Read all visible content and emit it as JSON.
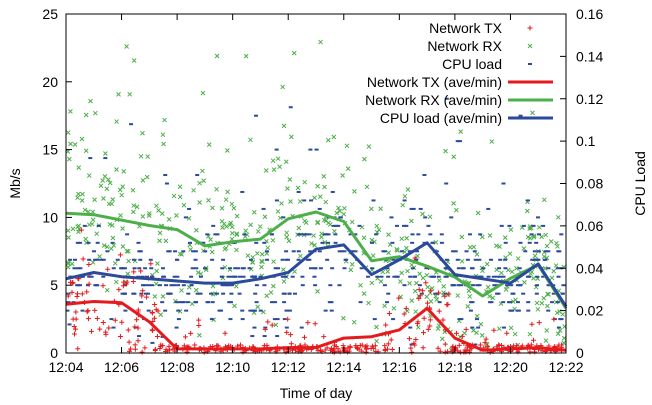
{
  "chart_data": {
    "type": "scatter",
    "xlabel": "Time of day",
    "ylabel": "Mb/s",
    "y2label": "CPU Load",
    "x_ticks": [
      "12:04",
      "12:06",
      "12:08",
      "12:10",
      "12:12",
      "12:14",
      "12:16",
      "12:18",
      "12:20",
      "12:22"
    ],
    "x_range_minutes": [
      0,
      18
    ],
    "ylim": [
      0,
      25
    ],
    "y_ticks": [
      0,
      5,
      10,
      15,
      20,
      25
    ],
    "y2lim": [
      0,
      0.16
    ],
    "y2_ticks": [
      "0",
      "0.02",
      "0.04",
      "0.06",
      "0.08",
      "0.1",
      "0.12",
      "0.14",
      "0.16"
    ],
    "legend_position": "top-right",
    "colors": {
      "tx": "#e41a1c",
      "rx": "#4daf4a",
      "cpu": "#2b4a9c"
    },
    "series": [
      {
        "name": "Network TX",
        "kind": "points",
        "marker": "plus",
        "color_key": "tx",
        "axis": "y",
        "approx_count": 420,
        "typical_range": [
          0,
          7
        ]
      },
      {
        "name": "Network RX",
        "kind": "points",
        "marker": "x",
        "color_key": "rx",
        "axis": "y",
        "approx_count": 520,
        "typical_range": [
          3,
          18
        ]
      },
      {
        "name": "CPU load",
        "kind": "points",
        "marker": "dash",
        "color_key": "cpu",
        "axis": "y2",
        "approx_count": 540,
        "typical_range": [
          0.01,
          0.09
        ]
      },
      {
        "name": "Network TX (ave/min)",
        "kind": "line",
        "color_key": "tx",
        "axis": "y",
        "x": [
          0,
          1,
          2,
          3,
          4,
          5,
          6,
          7,
          8,
          9,
          10,
          11,
          12,
          13,
          14,
          15,
          16,
          17,
          18
        ],
        "y": [
          3.6,
          3.8,
          3.7,
          2.3,
          0.3,
          0.3,
          0.3,
          0.3,
          0.4,
          0.4,
          1.1,
          1.2,
          1.7,
          3.3,
          1.1,
          0.2,
          0.3,
          0.4,
          0.2
        ]
      },
      {
        "name": "Network RX (ave/min)",
        "kind": "line",
        "color_key": "rx",
        "axis": "y",
        "x": [
          0,
          1,
          2,
          3,
          4,
          5,
          6,
          7,
          8,
          9,
          10,
          11,
          12,
          13,
          14,
          15,
          16,
          17,
          18
        ],
        "y": [
          10.3,
          10.2,
          9.8,
          9.4,
          9.1,
          7.9,
          8.2,
          8.4,
          9.9,
          10.4,
          9.7,
          6.8,
          7.1,
          6.4,
          5.6,
          4.2,
          5.5,
          6.5,
          3.3
        ]
      },
      {
        "name": "CPU load (ave/min)",
        "kind": "line",
        "color_key": "cpu",
        "axis": "y2",
        "x": [
          0,
          1,
          2,
          3,
          4,
          5,
          6,
          7,
          8,
          9,
          10,
          11,
          12,
          13,
          14,
          15,
          16,
          17,
          18
        ],
        "y": [
          0.035,
          0.038,
          0.036,
          0.035,
          0.034,
          0.033,
          0.033,
          0.035,
          0.038,
          0.049,
          0.051,
          0.037,
          0.044,
          0.052,
          0.037,
          0.035,
          0.033,
          0.042,
          0.022
        ]
      }
    ]
  }
}
